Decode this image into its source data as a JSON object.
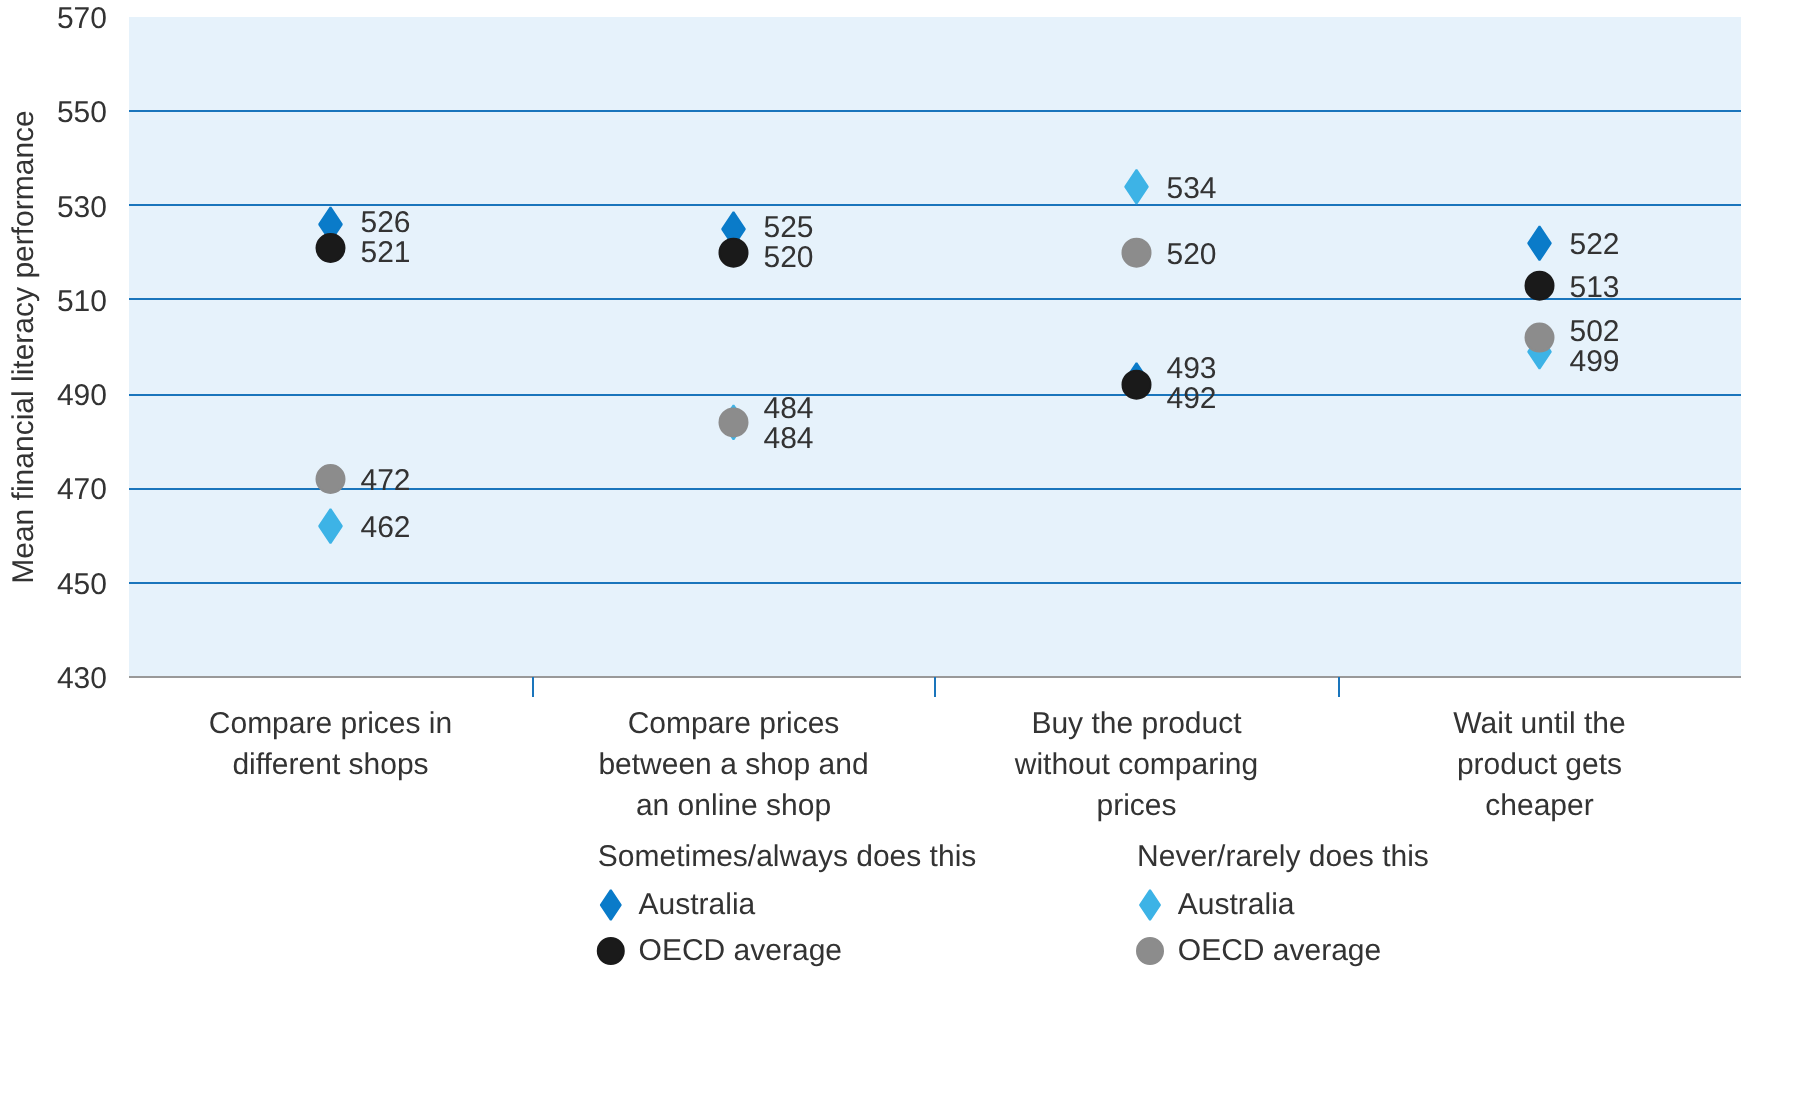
{
  "chart_data": {
    "type": "scatter",
    "ylabel": "Mean financial literacy performance",
    "categories": [
      "Compare prices in different shops",
      "Compare prices between a shop and an online shop",
      "Buy the product without comparing prices",
      "Wait until the product gets cheaper"
    ],
    "series": [
      {
        "name": "Australia",
        "color": "#0a7bc9",
        "marker": "diamond",
        "values": [
          526,
          525,
          493,
          522
        ]
      },
      {
        "name": "OECD average",
        "color": "#1a1a1a",
        "marker": "circle",
        "values": [
          521,
          520,
          492,
          513
        ]
      },
      {
        "name": "Australia",
        "color": "#3db3e6",
        "marker": "diamond",
        "values": [
          462,
          484,
          534,
          499
        ]
      },
      {
        "name": "OECD average",
        "color": "#8c8c8c",
        "marker": "circle",
        "values": [
          472,
          484,
          520,
          502
        ]
      }
    ],
    "annotations": [
      "Sometimes/always does this",
      "Never/rarely does this"
    ],
    "ylim": [
      430,
      570
    ],
    "yticks": [
      430,
      450,
      470,
      490,
      510,
      530,
      550,
      570
    ],
    "grid": "y",
    "legend": "bottom",
    "data_labels": true
  }
}
